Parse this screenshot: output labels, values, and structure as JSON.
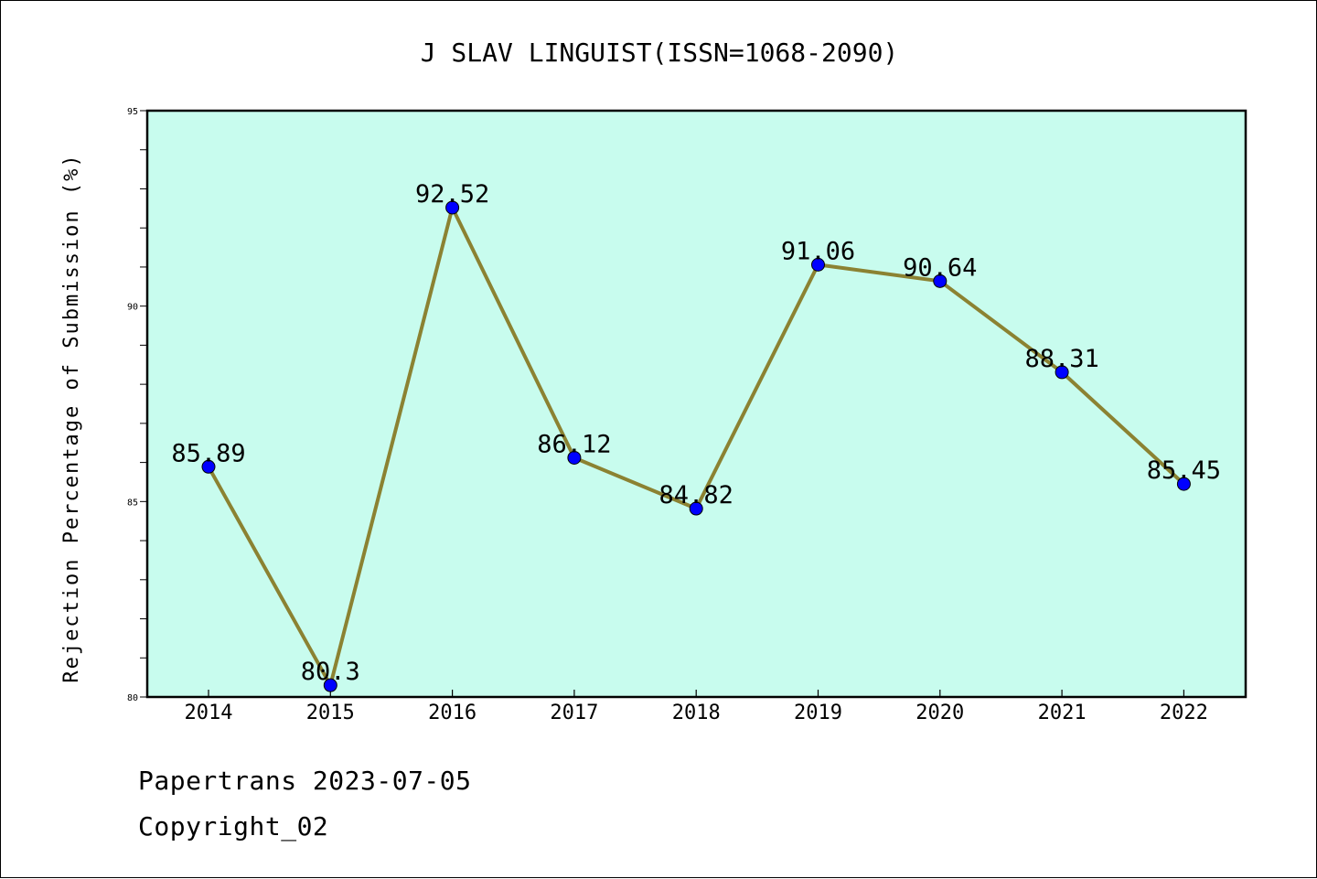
{
  "chart_data": {
    "type": "line",
    "title": "J SLAV LINGUIST(ISSN=1068-2090)",
    "xlabel": "",
    "ylabel": "Rejection Percentage of Submission (%)",
    "categories": [
      "2014",
      "2015",
      "2016",
      "2017",
      "2018",
      "2019",
      "2020",
      "2021",
      "2022"
    ],
    "values": [
      85.89,
      80.3,
      92.52,
      86.12,
      84.82,
      91.06,
      90.64,
      88.31,
      85.45
    ],
    "data_labels": [
      "85.89",
      "80.3",
      "92.52",
      "86.12",
      "84.82",
      "91.06",
      "90.64",
      "88.31",
      "85.45"
    ],
    "ylim": [
      80,
      95
    ],
    "y_ticks": [
      80,
      85,
      90,
      95
    ],
    "y_tick_labels": [
      "80",
      "85",
      "90",
      "95"
    ],
    "grid": false,
    "colors": {
      "plot_background": "#c8fcee",
      "line": "#8b8232",
      "marker": "#0000ff"
    }
  },
  "footer": {
    "line1": "Papertrans 2023-07-05",
    "line2": "Copyright_02"
  }
}
